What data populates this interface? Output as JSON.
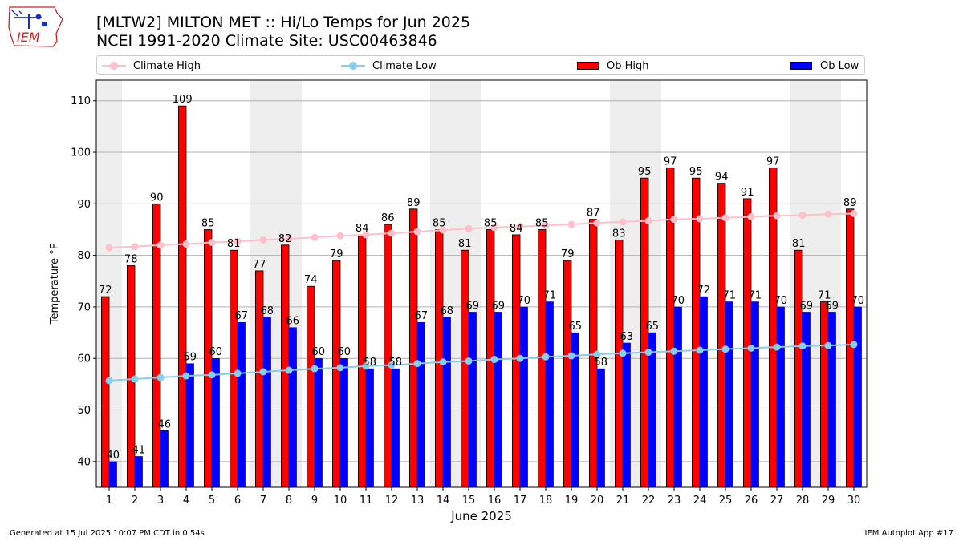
{
  "header": {
    "title": "[MLTW2] MILTON MET :: Hi/Lo Temps for Jun 2025",
    "subtitle": "NCEI 1991-2020 Climate Site: USC00463846",
    "logo_text": "IEM"
  },
  "legend": {
    "climate_high": "Climate High",
    "climate_low": "Climate Low",
    "ob_high": "Ob High",
    "ob_low": "Ob Low"
  },
  "footer": {
    "generated": "Generated at 15 Jul 2025 10:07 PM CDT in 0.54s",
    "app": "IEM Autoplot App #17"
  },
  "colors": {
    "ob_high": "#ff0000",
    "ob_low": "#0000ff",
    "climate_high": "#ffc0cb",
    "climate_low": "#87ceeb",
    "weekend_band": "#eeeeee",
    "grid": "#b0b0b0"
  },
  "chart_data": {
    "type": "bar",
    "xlabel": "June 2025",
    "ylabel": "Temperature °F",
    "ylim": [
      35,
      114
    ],
    "yticks": [
      40,
      50,
      60,
      70,
      80,
      90,
      100,
      110
    ],
    "grid": "horizontal",
    "legend_position": "top",
    "weekend_days": [
      1,
      7,
      8,
      14,
      15,
      21,
      22,
      28,
      29
    ],
    "categories": [
      1,
      2,
      3,
      4,
      5,
      6,
      7,
      8,
      9,
      10,
      11,
      12,
      13,
      14,
      15,
      16,
      17,
      18,
      19,
      20,
      21,
      22,
      23,
      24,
      25,
      26,
      27,
      28,
      29,
      30
    ],
    "series": [
      {
        "name": "Ob High",
        "kind": "bar",
        "values": [
          72,
          78,
          90,
          109,
          85,
          81,
          77,
          82,
          74,
          79,
          84,
          86,
          89,
          85,
          81,
          85,
          84,
          85,
          79,
          87,
          83,
          95,
          97,
          95,
          94,
          91,
          97,
          81,
          71,
          89
        ]
      },
      {
        "name": "Ob Low",
        "kind": "bar",
        "values": [
          40,
          41,
          46,
          59,
          60,
          67,
          68,
          66,
          60,
          60,
          58,
          58,
          67,
          68,
          69,
          69,
          70,
          71,
          65,
          58,
          63,
          65,
          70,
          72,
          71,
          71,
          70,
          69,
          69,
          70
        ]
      },
      {
        "name": "Climate High",
        "kind": "line",
        "values": [
          81.5,
          81.7,
          82.0,
          82.2,
          82.5,
          82.7,
          83.0,
          83.2,
          83.5,
          83.8,
          84.0,
          84.3,
          84.6,
          84.9,
          85.2,
          85.4,
          85.6,
          85.8,
          86.0,
          86.3,
          86.5,
          86.7,
          87.0,
          87.1,
          87.3,
          87.5,
          87.7,
          87.8,
          88.0,
          88.1
        ]
      },
      {
        "name": "Climate Low",
        "kind": "line",
        "values": [
          55.7,
          56.0,
          56.3,
          56.6,
          56.8,
          57.1,
          57.4,
          57.7,
          58.0,
          58.2,
          58.5,
          58.7,
          59.0,
          59.3,
          59.5,
          59.8,
          60.0,
          60.3,
          60.5,
          60.8,
          61.0,
          61.2,
          61.4,
          61.6,
          61.8,
          62.0,
          62.2,
          62.4,
          62.5,
          62.7
        ]
      }
    ],
    "data_labels": {
      "ob_high": [
        "72",
        "78",
        "90",
        "109",
        "85",
        "81",
        "77",
        "82",
        "74",
        "79",
        "84",
        "86",
        "89",
        "85",
        "81",
        "85",
        "84",
        "85",
        "79",
        "87",
        "83",
        "95",
        "97",
        "95",
        "94",
        "91",
        "97",
        "81",
        "71",
        "89"
      ],
      "ob_low": [
        "40",
        "41",
        "46",
        "59",
        "60",
        "67",
        "68",
        "66",
        "60",
        "60",
        "58",
        "58",
        "67",
        "68",
        "69",
        "69",
        "70",
        "71",
        "65",
        "58",
        "63",
        "65",
        "70",
        "72",
        "71",
        "71",
        "70",
        "69",
        "69",
        "70"
      ]
    }
  }
}
